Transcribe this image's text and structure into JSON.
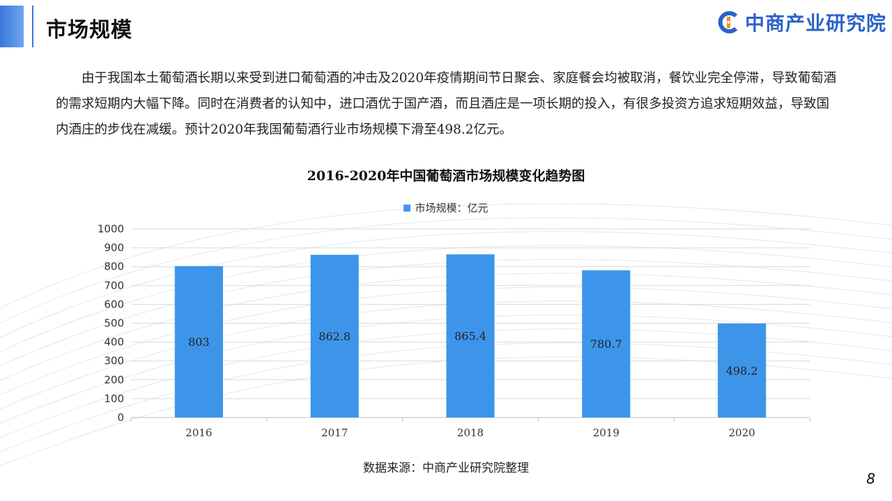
{
  "header": {
    "title": "市场规模",
    "logo_text": "中商产业研究院"
  },
  "body": {
    "paragraph": "由于我国本土葡萄酒长期以来受到进口葡萄酒的冲击及2020年疫情期间节日聚会、家庭餐会均被取消，餐饮业完全停滞，导致葡萄酒的需求短期内大幅下降。同时在消费者的认知中，进口酒优于国产酒，而且酒庄是一项长期的投入，有很多投资方追求短期效益，导致国内酒庄的步伐在减缓。预计2020年我国葡萄酒行业市场规模下滑至498.2亿元。"
  },
  "chart_data": {
    "type": "bar",
    "title": "2016-2020年中国葡萄酒市场规模变化趋势图",
    "categories": [
      "2016",
      "2017",
      "2018",
      "2019",
      "2020"
    ],
    "series": [
      {
        "name": "市场规模：亿元",
        "values": [
          803,
          862.8,
          865.4,
          780.7,
          498.2
        ],
        "color": "#3d95ea"
      }
    ],
    "data_labels": [
      "803",
      "862.8",
      "865.4",
      "780.7",
      "498.2"
    ],
    "ylim": [
      0,
      1000
    ],
    "yticks": [
      0,
      100,
      200,
      300,
      400,
      500,
      600,
      700,
      800,
      900,
      1000
    ],
    "grid": true,
    "legend_position": "top"
  },
  "footer": {
    "source": "数据来源：中商产业研究院整理",
    "page_number": "8"
  }
}
